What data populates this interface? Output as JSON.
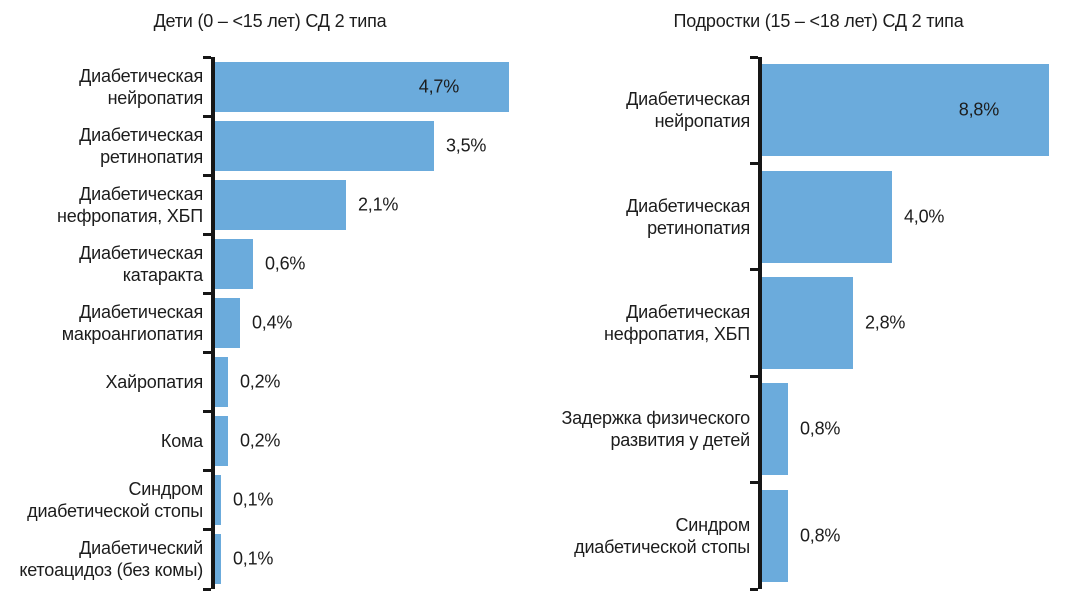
{
  "figure": {
    "background": "#ffffff",
    "bar_color": "#6babdc",
    "axis_color": "#161616",
    "text_color": "#1c1c1c"
  },
  "chart_data": [
    {
      "type": "bar",
      "orientation": "horizontal",
      "title": "Дети (0 – <15 лет) СД 2 типа",
      "unit": "%",
      "categories": [
        "Диабетическая\nнейропатия",
        "Диабетическая\nретинопатия",
        "Диабетическая\nнефропатия, ХБП",
        "Диабетическая\nкатаракта",
        "Диабетическая\nмакроангиопатия",
        "Хайропатия",
        "Кома",
        "Синдром\nдиабетической стопы",
        "Диабетический\nкетоацидоз (без комы)"
      ],
      "values": [
        4.7,
        3.5,
        2.1,
        0.6,
        0.4,
        0.2,
        0.2,
        0.1,
        0.1
      ],
      "value_labels": [
        "4,7%",
        "3,5%",
        "2,1%",
        "0,6%",
        "0,4%",
        "0,2%",
        "0,2%",
        "0,1%",
        "0,1%"
      ],
      "value_label_inside": [
        true,
        false,
        false,
        false,
        false,
        false,
        false,
        false,
        false
      ],
      "xlim": [
        0,
        5.2
      ],
      "grid": false,
      "legend": false
    },
    {
      "type": "bar",
      "orientation": "horizontal",
      "title": "Подростки (15 – <18 лет) СД 2 типа",
      "unit": "%",
      "categories": [
        "Диабетическая\nнейропатия",
        "Диабетическая\nретинопатия",
        "Диабетическая\nнефропатия, ХБП",
        "Задержка физического\nразвития у детей",
        "Синдром\nдиабетической стопы"
      ],
      "values": [
        8.8,
        4.0,
        2.8,
        0.8,
        0.8
      ],
      "value_labels": [
        "8,8%",
        "4,0%",
        "2,8%",
        "0,8%",
        "0,8%"
      ],
      "value_label_inside": [
        true,
        false,
        false,
        false,
        false
      ],
      "xlim": [
        0,
        9.7
      ],
      "grid": false,
      "legend": false
    }
  ]
}
